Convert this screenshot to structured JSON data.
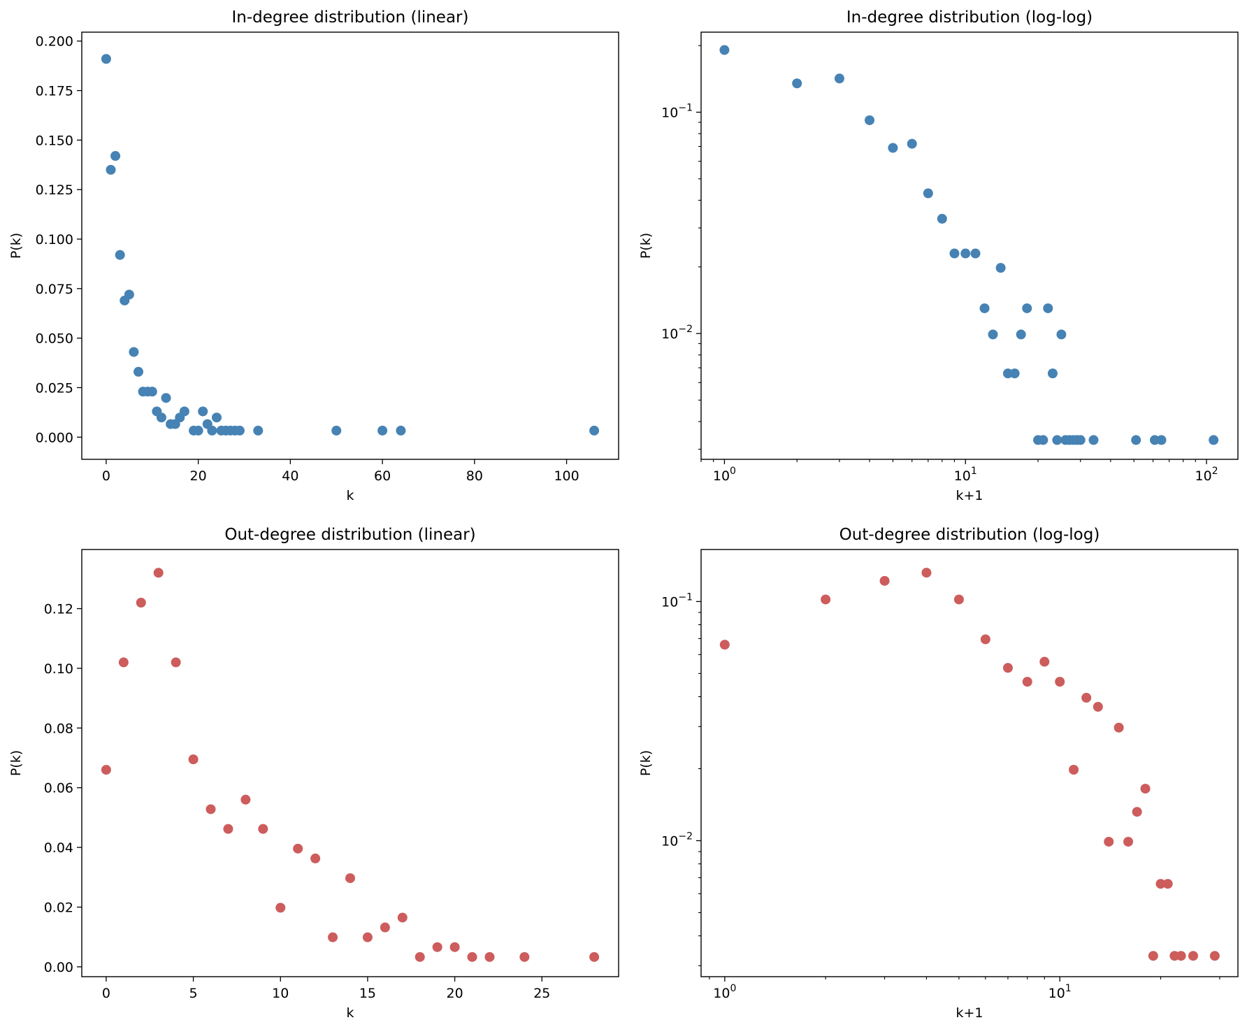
{
  "chart_data": [
    {
      "id": "in_linear",
      "type": "scatter",
      "title": "In-degree distribution (linear)",
      "xlabel": "k",
      "ylabel": "P(k)",
      "xscale": "linear",
      "yscale": "linear",
      "xlim": [
        -5.3,
        111.3
      ],
      "ylim": [
        -0.0112,
        0.2045
      ],
      "xticks": [
        0,
        20,
        40,
        60,
        80,
        100
      ],
      "xticklabels": [
        "0",
        "20",
        "40",
        "60",
        "80",
        "100"
      ],
      "yticks": [
        0.0,
        0.025,
        0.05,
        0.075,
        0.1,
        0.125,
        0.15,
        0.175,
        0.2
      ],
      "yticklabels": [
        "0.000",
        "0.025",
        "0.050",
        "0.075",
        "0.100",
        "0.125",
        "0.150",
        "0.175",
        "0.200"
      ],
      "color": "#4682b4",
      "points": [
        [
          0,
          0.191
        ],
        [
          1,
          0.135
        ],
        [
          2,
          0.142
        ],
        [
          3,
          0.092
        ],
        [
          4,
          0.069
        ],
        [
          5,
          0.072
        ],
        [
          6,
          0.043
        ],
        [
          7,
          0.033
        ],
        [
          8,
          0.023
        ],
        [
          9,
          0.023
        ],
        [
          10,
          0.023
        ],
        [
          11,
          0.013
        ],
        [
          12,
          0.0099
        ],
        [
          13,
          0.0198
        ],
        [
          14,
          0.0066
        ],
        [
          15,
          0.0066
        ],
        [
          16,
          0.0099
        ],
        [
          17,
          0.013
        ],
        [
          19,
          0.0033
        ],
        [
          20,
          0.0033
        ],
        [
          21,
          0.013
        ],
        [
          22,
          0.0066
        ],
        [
          23,
          0.0033
        ],
        [
          24,
          0.0099
        ],
        [
          25,
          0.0033
        ],
        [
          26,
          0.0033
        ],
        [
          27,
          0.0033
        ],
        [
          28,
          0.0033
        ],
        [
          29,
          0.0033
        ],
        [
          33,
          0.0033
        ],
        [
          50,
          0.0033
        ],
        [
          60,
          0.0033
        ],
        [
          64,
          0.0033
        ],
        [
          106,
          0.0033
        ]
      ]
    },
    {
      "id": "in_loglog",
      "type": "scatter",
      "title": "In-degree distribution (log-log)",
      "xlabel": "k+1",
      "ylabel": "P(k)",
      "xscale": "log",
      "yscale": "log",
      "xlim": [
        0.8,
        135
      ],
      "ylim": [
        0.0027,
        0.23
      ],
      "xticks": [
        1,
        10,
        100
      ],
      "xticklabels": [
        {
          "base": "10",
          "exp": "0"
        },
        {
          "base": "10",
          "exp": "1"
        },
        {
          "base": "10",
          "exp": "2"
        }
      ],
      "yticks": [
        0.01,
        0.1
      ],
      "yticklabels": [
        {
          "base": "10",
          "exp": "−2"
        },
        {
          "base": "10",
          "exp": "−1"
        }
      ],
      "color": "#4682b4",
      "points": [
        [
          1,
          0.191
        ],
        [
          2,
          0.135
        ],
        [
          3,
          0.142
        ],
        [
          4,
          0.092
        ],
        [
          5,
          0.069
        ],
        [
          6,
          0.072
        ],
        [
          7,
          0.043
        ],
        [
          8,
          0.033
        ],
        [
          9,
          0.023
        ],
        [
          10,
          0.023
        ],
        [
          11,
          0.023
        ],
        [
          12,
          0.013
        ],
        [
          13,
          0.0099
        ],
        [
          14,
          0.0198
        ],
        [
          15,
          0.0066
        ],
        [
          16,
          0.0066
        ],
        [
          17,
          0.0099
        ],
        [
          18,
          0.013
        ],
        [
          20,
          0.0033
        ],
        [
          21,
          0.0033
        ],
        [
          22,
          0.013
        ],
        [
          23,
          0.0066
        ],
        [
          24,
          0.0033
        ],
        [
          25,
          0.0099
        ],
        [
          26,
          0.0033
        ],
        [
          27,
          0.0033
        ],
        [
          28,
          0.0033
        ],
        [
          29,
          0.0033
        ],
        [
          30,
          0.0033
        ],
        [
          34,
          0.0033
        ],
        [
          51,
          0.0033
        ],
        [
          61,
          0.0033
        ],
        [
          65,
          0.0033
        ],
        [
          107,
          0.0033
        ]
      ]
    },
    {
      "id": "out_linear",
      "type": "scatter",
      "title": "Out-degree distribution (linear)",
      "xlabel": "k",
      "ylabel": "P(k)",
      "xscale": "linear",
      "yscale": "linear",
      "xlim": [
        -1.4,
        29.4
      ],
      "ylim": [
        -0.0033,
        0.1398
      ],
      "xticks": [
        0,
        5,
        10,
        15,
        20,
        25
      ],
      "xticklabels": [
        "0",
        "5",
        "10",
        "15",
        "20",
        "25"
      ],
      "yticks": [
        0.0,
        0.02,
        0.04,
        0.06,
        0.08,
        0.1,
        0.12
      ],
      "yticklabels": [
        "0.00",
        "0.02",
        "0.04",
        "0.06",
        "0.08",
        "0.10",
        "0.12"
      ],
      "color": "#cd5c5c",
      "points": [
        [
          0,
          0.066
        ],
        [
          1,
          0.102
        ],
        [
          2,
          0.122
        ],
        [
          3,
          0.132
        ],
        [
          4,
          0.102
        ],
        [
          5,
          0.0695
        ],
        [
          6,
          0.0528
        ],
        [
          7,
          0.0462
        ],
        [
          8,
          0.056
        ],
        [
          9,
          0.0462
        ],
        [
          10,
          0.0198
        ],
        [
          11,
          0.0396
        ],
        [
          12,
          0.0363
        ],
        [
          13,
          0.0099
        ],
        [
          14,
          0.0297
        ],
        [
          15,
          0.0099
        ],
        [
          16,
          0.0132
        ],
        [
          17,
          0.0165
        ],
        [
          18,
          0.0033
        ],
        [
          19,
          0.0066
        ],
        [
          20,
          0.0066
        ],
        [
          21,
          0.0033
        ],
        [
          22,
          0.0033
        ],
        [
          24,
          0.0033
        ],
        [
          28,
          0.0033
        ]
      ]
    },
    {
      "id": "out_loglog",
      "type": "scatter",
      "title": "Out-degree distribution (log-log)",
      "xlabel": "k+1",
      "ylabel": "P(k)",
      "xscale": "log",
      "yscale": "log",
      "xlim": [
        0.85,
        34
      ],
      "ylim": [
        0.0027,
        0.165
      ],
      "xticks": [
        1,
        10
      ],
      "xticklabels": [
        {
          "base": "10",
          "exp": "0"
        },
        {
          "base": "10",
          "exp": "1"
        }
      ],
      "yticks": [
        0.01,
        0.1
      ],
      "yticklabels": [
        {
          "base": "10",
          "exp": "−2"
        },
        {
          "base": "10",
          "exp": "−1"
        }
      ],
      "color": "#cd5c5c",
      "points": [
        [
          1,
          0.066
        ],
        [
          2,
          0.102
        ],
        [
          3,
          0.122
        ],
        [
          4,
          0.132
        ],
        [
          5,
          0.102
        ],
        [
          6,
          0.0695
        ],
        [
          7,
          0.0528
        ],
        [
          8,
          0.0462
        ],
        [
          9,
          0.056
        ],
        [
          10,
          0.0462
        ],
        [
          11,
          0.0198
        ],
        [
          12,
          0.0396
        ],
        [
          13,
          0.0363
        ],
        [
          14,
          0.0099
        ],
        [
          15,
          0.0297
        ],
        [
          16,
          0.0099
        ],
        [
          17,
          0.0132
        ],
        [
          18,
          0.0165
        ],
        [
          19,
          0.0033
        ],
        [
          20,
          0.0066
        ],
        [
          21,
          0.0066
        ],
        [
          22,
          0.0033
        ],
        [
          23,
          0.0033
        ],
        [
          25,
          0.0033
        ],
        [
          29,
          0.0033
        ]
      ]
    }
  ]
}
